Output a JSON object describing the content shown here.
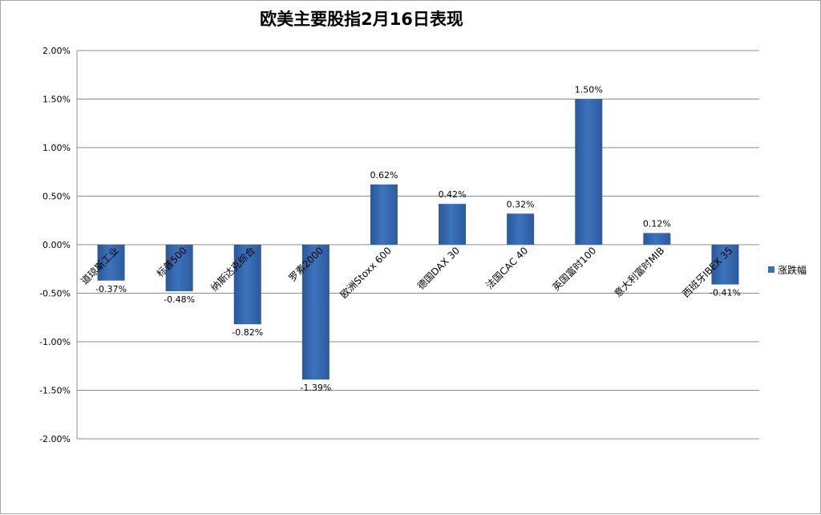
{
  "chart_data": {
    "type": "bar",
    "title": "欧美主要股指2月16日表现",
    "xlabel": "",
    "ylabel": "",
    "ylim": [
      -2.0,
      2.0
    ],
    "y_ticks": [
      "2.00%",
      "1.50%",
      "1.00%",
      "0.50%",
      "0.00%",
      "-0.50%",
      "-1.00%",
      "-1.50%",
      "-2.00%"
    ],
    "grid": true,
    "legend_position": "right",
    "categories": [
      "道琼斯工业",
      "标普500",
      "纳斯达克综合",
      "罗素2000",
      "欧洲Stoxx 600",
      "德国DAX 30",
      "法国CAC 40",
      "英国富时100",
      "意大利富时MIB",
      "西班牙IBEX 35"
    ],
    "series": [
      {
        "name": "涨跌幅",
        "color": "#3a6fb5",
        "values": [
          -0.37,
          -0.48,
          -0.82,
          -1.39,
          0.62,
          0.42,
          0.32,
          1.5,
          0.12,
          -0.41
        ],
        "labels": [
          "-0.37%",
          "-0.48%",
          "-0.82%",
          "-1.39%",
          "0.62%",
          "0.42%",
          "0.32%",
          "1.50%",
          "0.12%",
          "-0.41%"
        ]
      }
    ]
  }
}
